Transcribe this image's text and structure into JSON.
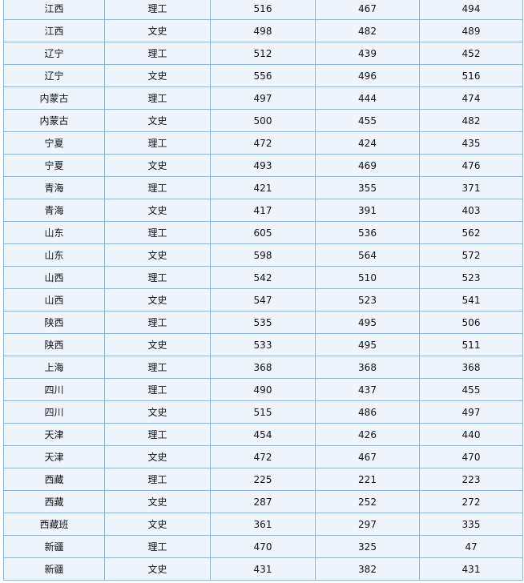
{
  "table": {
    "rows": [
      [
        "江西",
        "理工",
        516,
        467,
        494
      ],
      [
        "江西",
        "文史",
        498,
        482,
        489
      ],
      [
        "辽宁",
        "理工",
        512,
        439,
        452
      ],
      [
        "辽宁",
        "文史",
        556,
        496,
        516
      ],
      [
        "内蒙古",
        "理工",
        497,
        444,
        474
      ],
      [
        "内蒙古",
        "文史",
        500,
        455,
        482
      ],
      [
        "宁夏",
        "理工",
        472,
        424,
        435
      ],
      [
        "宁夏",
        "文史",
        493,
        469,
        476
      ],
      [
        "青海",
        "理工",
        421,
        355,
        371
      ],
      [
        "青海",
        "文史",
        417,
        391,
        403
      ],
      [
        "山东",
        "理工",
        605,
        536,
        562
      ],
      [
        "山东",
        "文史",
        598,
        564,
        572
      ],
      [
        "山西",
        "理工",
        542,
        510,
        523
      ],
      [
        "山西",
        "文史",
        547,
        523,
        541
      ],
      [
        "陕西",
        "理工",
        535,
        495,
        506
      ],
      [
        "陕西",
        "文史",
        533,
        495,
        511
      ],
      [
        "上海",
        "理工",
        368,
        368,
        368
      ],
      [
        "四川",
        "理工",
        490,
        437,
        455
      ],
      [
        "四川",
        "文史",
        515,
        486,
        497
      ],
      [
        "天津",
        "理工",
        454,
        426,
        440
      ],
      [
        "天津",
        "文史",
        472,
        467,
        470
      ],
      [
        "西藏",
        "理工",
        225,
        221,
        223
      ],
      [
        "西藏",
        "文史",
        287,
        252,
        272
      ],
      [
        "西藏班",
        "文史",
        361,
        297,
        335
      ],
      [
        "新疆",
        "理工",
        470,
        325,
        47
      ],
      [
        "新疆",
        "文史",
        431,
        382,
        431
      ]
    ]
  }
}
